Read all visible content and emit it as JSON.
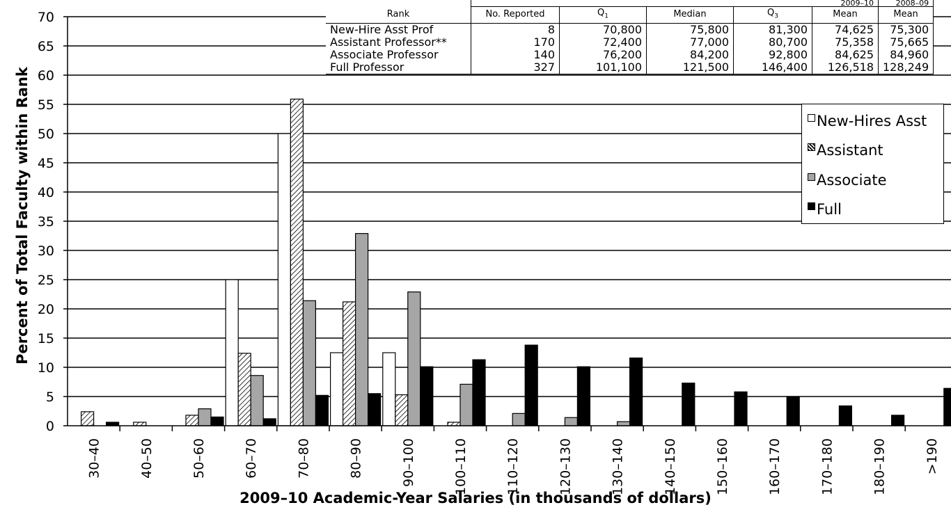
{
  "chart_data": {
    "type": "bar",
    "xlabel": "2009–10 Academic-Year Salaries (in thousands of dollars)",
    "ylabel": "Percent of Total Faculty within Rank",
    "ylim": [
      0,
      70
    ],
    "yticks": [
      0,
      5,
      10,
      15,
      20,
      25,
      30,
      35,
      40,
      45,
      50,
      55,
      60,
      65,
      70
    ],
    "grid": true,
    "legend_position": "right",
    "categories": [
      "30–40",
      "40–50",
      "50–60",
      "60–70",
      "70–80",
      "80–90",
      "90–100",
      "100–110",
      "110–120",
      "120–130",
      "130–140",
      "140–150",
      "150–160",
      "160–170",
      "170–180",
      "180–190",
      ">190"
    ],
    "series": [
      {
        "name": "New-Hires Asst",
        "fill": "white",
        "values": [
          0,
          0,
          0,
          25,
          50,
          12.5,
          12.5,
          0,
          0,
          0,
          0,
          0,
          0,
          0,
          0,
          0,
          0
        ]
      },
      {
        "name": "Assistant",
        "fill": "hatch",
        "values": [
          2.4,
          0.6,
          1.8,
          12.4,
          55.9,
          21.2,
          5.3,
          0.6,
          0,
          0,
          0,
          0,
          0,
          0,
          0,
          0,
          0
        ]
      },
      {
        "name": "Associate",
        "fill": "gray",
        "values": [
          0,
          0,
          2.9,
          8.6,
          21.4,
          32.9,
          22.9,
          7.1,
          2.1,
          1.4,
          0.7,
          0,
          0,
          0,
          0,
          0,
          0
        ]
      },
      {
        "name": "Full",
        "fill": "black",
        "values": [
          0.6,
          0,
          1.5,
          1.2,
          5.2,
          5.5,
          10.1,
          11.3,
          13.8,
          10.1,
          11.6,
          7.3,
          5.8,
          5.0,
          3.4,
          1.8,
          6.4
        ]
      }
    ],
    "colors": {
      "gray": "#a6a6a6",
      "black": "#000000",
      "white": "#ffffff"
    }
  },
  "summary_table": {
    "year_current": "2009–10",
    "year_prior": "2008–09",
    "headers": [
      "Rank",
      "No. Reported",
      "Q",
      "Median",
      "Q",
      "Mean",
      "Mean"
    ],
    "q1_sub": "1",
    "q3_sub": "3",
    "rows": [
      [
        "New-Hire Asst Prof",
        "8",
        "70,800",
        "75,800",
        "81,300",
        "74,625",
        "75,300"
      ],
      [
        "Assistant Professor**",
        "170",
        "72,400",
        "77,000",
        "80,700",
        "75,358",
        "75,665"
      ],
      [
        "Associate Professor",
        "140",
        "76,200",
        "84,200",
        "92,800",
        "84,625",
        "84,960"
      ],
      [
        "Full Professor",
        "327",
        "101,100",
        "121,500",
        "146,400",
        "126,518",
        "128,249"
      ]
    ]
  }
}
